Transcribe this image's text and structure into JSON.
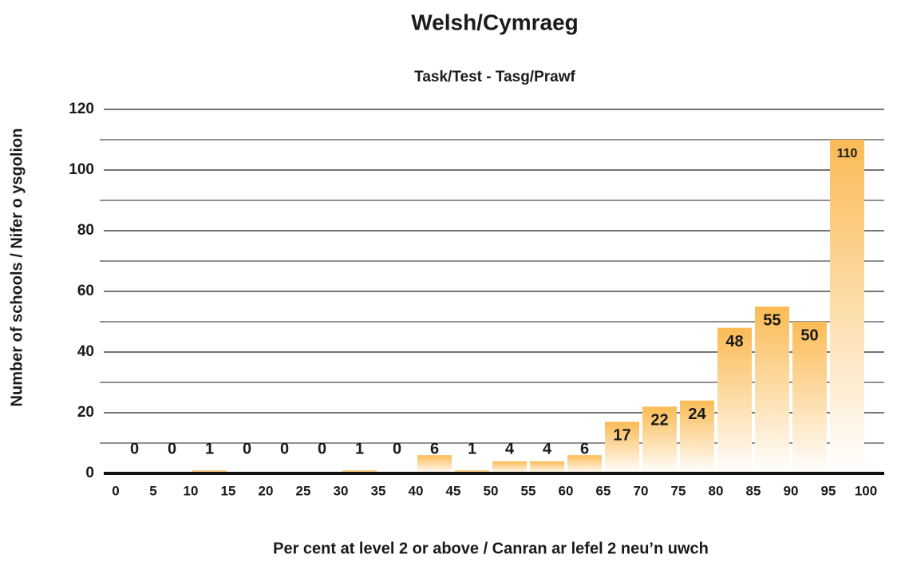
{
  "chart_data": {
    "type": "histogram",
    "title": "Welsh/Cymraeg",
    "subtitle": "Task/Test - Tasg/Prawf",
    "x_label": "Per cent at level 2 or above / Canran ar lefel 2 neu’n uwch",
    "y_label": "Number of schools / Nifer o ysgolion",
    "bins": [
      0,
      5,
      10,
      15,
      20,
      25,
      30,
      35,
      40,
      45,
      50,
      55,
      60,
      65,
      70,
      75,
      80,
      85,
      90,
      95,
      100
    ],
    "values": [
      0,
      0,
      1,
      0,
      0,
      0,
      1,
      0,
      6,
      1,
      4,
      4,
      6,
      17,
      22,
      24,
      48,
      55,
      50,
      110
    ],
    "color": "#fbbb55",
    "xlim": [
      0,
      100
    ],
    "ylim": [
      0,
      120
    ],
    "yticks": [
      0,
      20,
      40,
      60,
      80,
      100,
      120
    ],
    "minor_yticks": [
      10,
      30,
      50,
      70,
      90,
      110
    ],
    "grid": true
  }
}
